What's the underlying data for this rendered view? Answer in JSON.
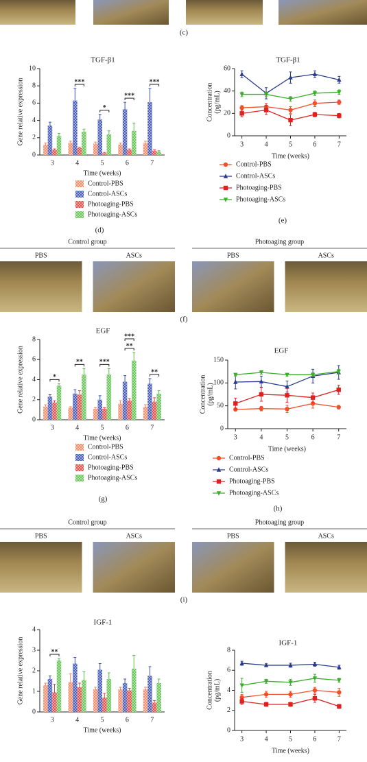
{
  "top_label": "(c)",
  "figures": [
    {
      "label": "(f)",
      "groups": [
        {
          "title": "Control group",
          "images": [
            "PBS",
            "ASCs"
          ]
        },
        {
          "title": "Photoaging group",
          "images": [
            "PBS",
            "ASCs"
          ]
        }
      ]
    },
    {
      "label": "(i)",
      "groups": [
        {
          "title": "Control group",
          "images": [
            "PBS",
            "ASCs"
          ]
        },
        {
          "title": "Photoaging group",
          "images": [
            "PBS",
            "ASCs"
          ]
        }
      ]
    }
  ],
  "chart_data": [
    {
      "type": "bar",
      "label": "(d)",
      "title": "TGF-β1",
      "xlabel": "Time (weeks)",
      "ylabel": "Gene relative expression",
      "categories": [
        3,
        4,
        5,
        6,
        7
      ],
      "ylim": [
        0,
        10
      ],
      "yticks": [
        0,
        2,
        4,
        6,
        8,
        10
      ],
      "legend": true,
      "series": [
        {
          "name": "Control-PBS",
          "color": "#f4845f",
          "values": [
            1.2,
            1.4,
            1.3,
            1.2,
            1.4
          ],
          "errors": [
            0.2,
            0.2,
            0.2,
            0.2,
            0.2
          ]
        },
        {
          "name": "Control-ASCs",
          "color": "#3a4fb0",
          "values": [
            3.4,
            6.3,
            4.1,
            5.3,
            6.1
          ],
          "errors": [
            0.4,
            1.4,
            0.6,
            0.8,
            1.6
          ]
        },
        {
          "name": "Photoaging-PBS",
          "color": "#e8403a",
          "values": [
            0.6,
            0.8,
            0.2,
            0.6,
            0.5
          ],
          "errors": [
            0.1,
            0.1,
            0.1,
            0.1,
            0.1
          ]
        },
        {
          "name": "Photoaging-ASCs",
          "color": "#5bbf4a",
          "values": [
            2.2,
            2.7,
            2.4,
            2.8,
            0.4
          ],
          "errors": [
            0.3,
            0.3,
            0.4,
            0.9,
            0.1
          ]
        }
      ],
      "annotations": [
        {
          "x": 4,
          "text": "***"
        },
        {
          "x": 5,
          "text": "*"
        },
        {
          "x": 6,
          "text": "***"
        },
        {
          "x": 7,
          "text": "***"
        }
      ]
    },
    {
      "type": "line",
      "label": "(e)",
      "title": "TGF-β1",
      "xlabel": "Time (weeks)",
      "ylabel": [
        "Concentration",
        "(pg/mL)"
      ],
      "x": [
        3,
        4,
        5,
        6,
        7
      ],
      "xlim": [
        2.7,
        7.3
      ],
      "xticks": [
        3,
        4,
        5,
        6,
        7
      ],
      "ylim": [
        0,
        60
      ],
      "yticks": [
        0,
        20,
        40,
        60
      ],
      "legend": true,
      "series": [
        {
          "name": "Control-PBS",
          "color": "#f0502a",
          "marker": "circle",
          "values": [
            25,
            26,
            23,
            29,
            30
          ],
          "errors": [
            2,
            3,
            3,
            3,
            2
          ]
        },
        {
          "name": "Control-ASCs",
          "color": "#2a3a8c",
          "marker": "triangle",
          "values": [
            55,
            38,
            52,
            55,
            50
          ],
          "errors": [
            3,
            5,
            5,
            3,
            3
          ]
        },
        {
          "name": "Photoaging-PBS",
          "color": "#e02020",
          "marker": "square",
          "values": [
            20,
            23,
            14,
            19,
            18
          ],
          "errors": [
            3,
            4,
            5,
            2,
            2
          ]
        },
        {
          "name": "Photoaging-ASCs",
          "color": "#3cae2c",
          "marker": "triangle-down",
          "values": [
            37,
            37,
            33,
            38,
            39
          ],
          "errors": [
            2,
            2,
            2,
            2,
            2
          ]
        }
      ]
    },
    {
      "type": "bar",
      "label": "(g)",
      "title": "EGF",
      "xlabel": "Time (weeks)",
      "ylabel": "Gene relative expression",
      "categories": [
        3,
        4,
        5,
        6,
        7
      ],
      "ylim": [
        0,
        8
      ],
      "yticks": [
        0,
        2,
        4,
        6,
        8
      ],
      "legend": true,
      "series": [
        {
          "name": "Control-PBS",
          "color": "#f4845f",
          "values": [
            1.3,
            1.2,
            1.1,
            1.6,
            1.3
          ],
          "errors": [
            0.2,
            0.1,
            0.1,
            0.3,
            0.2
          ]
        },
        {
          "name": "Control-ASCs",
          "color": "#3a4fb0",
          "values": [
            2.3,
            2.6,
            2.0,
            3.8,
            3.6
          ],
          "errors": [
            0.2,
            0.4,
            0.4,
            0.6,
            0.5
          ]
        },
        {
          "name": "Photoaging-PBS",
          "color": "#e8403a",
          "values": [
            1.7,
            2.5,
            1.1,
            1.9,
            1.8
          ],
          "errors": [
            0.2,
            0.4,
            0.1,
            0.2,
            0.4
          ]
        },
        {
          "name": "Photoaging-ASCs",
          "color": "#5bbf4a",
          "values": [
            3.4,
            4.5,
            4.5,
            5.9,
            2.6
          ],
          "errors": [
            0.2,
            0.6,
            0.6,
            0.8,
            0.3
          ]
        }
      ],
      "annotations": [
        {
          "x": 3,
          "text": "*"
        },
        {
          "x": 4,
          "text": "**"
        },
        {
          "x": 5,
          "text": "***"
        },
        {
          "x": 6,
          "text": "**"
        },
        {
          "x": 6,
          "text": "***"
        },
        {
          "x": 7,
          "text": "**"
        }
      ]
    },
    {
      "type": "line",
      "label": "(h)",
      "title": "EGF",
      "xlabel": "Time (weeks)",
      "ylabel": [
        "Concentration",
        "(pg/mL)"
      ],
      "x": [
        3,
        4,
        5,
        6,
        7
      ],
      "xlim": [
        2.7,
        7.3
      ],
      "xticks": [
        3,
        4,
        5,
        6,
        7
      ],
      "ylim": [
        0,
        150
      ],
      "yticks": [
        0,
        50,
        100,
        150
      ],
      "legend": true,
      "series": [
        {
          "name": "Control-PBS",
          "color": "#f0502a",
          "marker": "circle",
          "values": [
            42,
            44,
            43,
            55,
            47
          ],
          "errors": [
            3,
            5,
            8,
            10,
            4
          ]
        },
        {
          "name": "Control-ASCs",
          "color": "#2a3a8c",
          "marker": "triangle",
          "values": [
            102,
            103,
            92,
            115,
            123
          ],
          "errors": [
            15,
            12,
            12,
            15,
            15
          ]
        },
        {
          "name": "Photoaging-PBS",
          "color": "#e02020",
          "marker": "square",
          "values": [
            55,
            75,
            73,
            68,
            85
          ],
          "errors": [
            12,
            15,
            15,
            10,
            10
          ]
        },
        {
          "name": "Photoaging-ASCs",
          "color": "#3cae2c",
          "marker": "triangle-down",
          "values": [
            118,
            123,
            118,
            118,
            125
          ],
          "errors": [
            3,
            4,
            3,
            4,
            5
          ]
        }
      ]
    },
    {
      "type": "bar",
      "title": "IGF-1",
      "xlabel": "Time (weeks)",
      "ylabel": "Gene relative expression",
      "categories": [
        3,
        4,
        5,
        6,
        7
      ],
      "ylim": [
        0,
        4
      ],
      "yticks": [
        0,
        1,
        2,
        3,
        4
      ],
      "legend": false,
      "series": [
        {
          "name": "Control-PBS",
          "color": "#f4845f",
          "values": [
            1.3,
            1.45,
            1.1,
            1.1,
            1.1
          ],
          "errors": [
            0.1,
            0.4,
            0.1,
            0.1,
            0.1
          ]
        },
        {
          "name": "Control-ASCs",
          "color": "#3a4fb0",
          "values": [
            1.6,
            2.35,
            2.05,
            1.4,
            1.75
          ],
          "errors": [
            0.15,
            0.3,
            0.3,
            0.2,
            0.45
          ]
        },
        {
          "name": "Photoaging-PBS",
          "color": "#e8403a",
          "values": [
            0.95,
            1.2,
            0.7,
            1.05,
            0.45
          ],
          "errors": [
            0.4,
            0.2,
            0.2,
            0.1,
            0.1
          ]
        },
        {
          "name": "Photoaging-ASCs",
          "color": "#5bbf4a",
          "values": [
            2.5,
            1.55,
            1.6,
            2.1,
            1.4
          ],
          "errors": [
            0.1,
            0.4,
            0.3,
            0.65,
            0.2
          ]
        }
      ],
      "annotations": [
        {
          "x": 3,
          "text": "**"
        }
      ]
    },
    {
      "type": "line",
      "title": "IGF-1",
      "xlabel": "Time (weeks)",
      "ylabel": [
        "Concentration",
        "(pg/mL)"
      ],
      "x": [
        3,
        4,
        5,
        6,
        7
      ],
      "xlim": [
        2.7,
        7.3
      ],
      "xticks": [
        3,
        4,
        5,
        6,
        7
      ],
      "ylim": [
        0,
        8
      ],
      "yticks": [
        0,
        2,
        4,
        6,
        8
      ],
      "legend": false,
      "series": [
        {
          "name": "Control-PBS",
          "color": "#f0502a",
          "marker": "circle",
          "values": [
            3.3,
            3.6,
            3.6,
            4.0,
            3.8
          ],
          "errors": [
            0.3,
            0.3,
            0.3,
            0.3,
            0.4
          ]
        },
        {
          "name": "Control-ASCs",
          "color": "#2a3a8c",
          "marker": "triangle",
          "values": [
            6.7,
            6.5,
            6.5,
            6.6,
            6.3
          ],
          "errors": [
            0.2,
            0.15,
            0.2,
            0.2,
            0.2
          ]
        },
        {
          "name": "Photoaging-PBS",
          "color": "#e02020",
          "marker": "square",
          "values": [
            2.9,
            2.6,
            2.6,
            3.2,
            2.4
          ],
          "errors": [
            0.3,
            0.2,
            0.2,
            0.4,
            0.2
          ]
        },
        {
          "name": "Photoaging-ASCs",
          "color": "#3cae2c",
          "marker": "triangle-down",
          "values": [
            4.5,
            4.9,
            4.8,
            5.2,
            5.0
          ],
          "errors": [
            0.7,
            0.2,
            0.3,
            0.4,
            0.2
          ]
        }
      ]
    }
  ]
}
